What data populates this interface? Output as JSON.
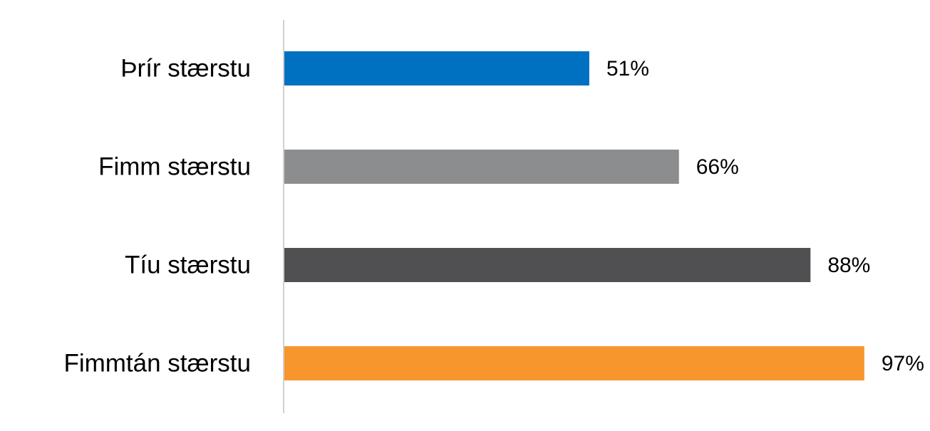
{
  "chart_data": {
    "type": "bar",
    "orientation": "horizontal",
    "categories": [
      "Þrír stærstu",
      "Fimm stærstu",
      "Tíu stærstu",
      "Fimmtán stærstu"
    ],
    "values": [
      51,
      66,
      88,
      97
    ],
    "value_labels": [
      "51%",
      "66%",
      "88%",
      "97%"
    ],
    "colors": [
      "#0070c0",
      "#8c8d8e",
      "#505052",
      "#f7962d"
    ],
    "xlim": [
      0,
      100
    ]
  }
}
